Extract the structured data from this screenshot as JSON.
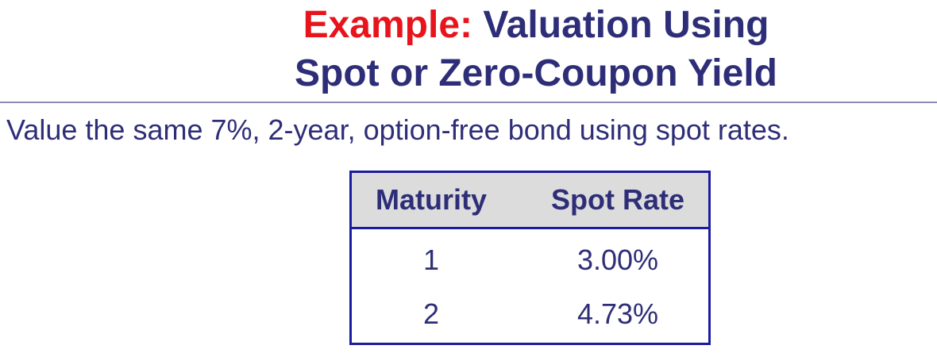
{
  "slide": {
    "title_accent": "Example:",
    "title_line1_rest": " Valuation Using",
    "title_line2": "Spot or Zero-Coupon Yield",
    "subtitle": "Value the same 7%, 2-year, option-free bond using spot rates."
  },
  "table": {
    "headers": [
      "Maturity",
      "Spot Rate"
    ],
    "rows": [
      [
        "1",
        "3.00%"
      ],
      [
        "2",
        "4.73%"
      ]
    ]
  },
  "colors": {
    "title_text": "#2e2e78",
    "accent": "#e8141c",
    "table_border": "#1c1ca0",
    "header_bg": "#dcdcdc"
  }
}
